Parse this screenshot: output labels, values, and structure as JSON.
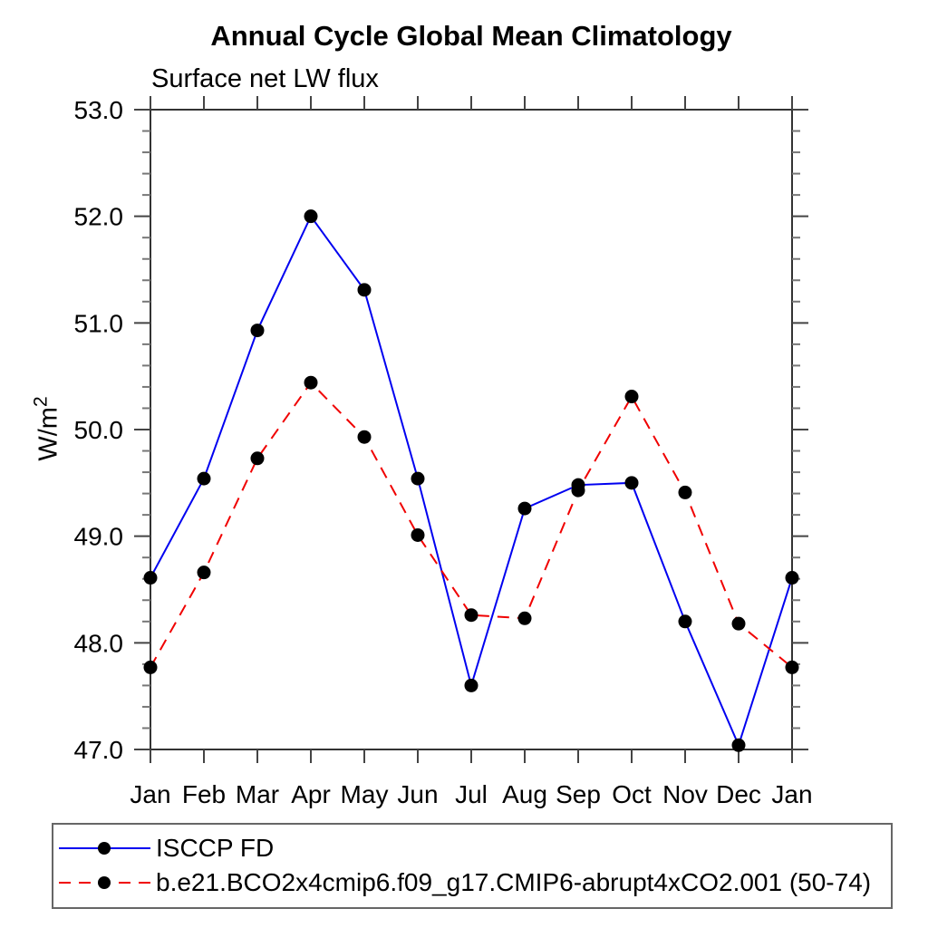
{
  "chart_data": {
    "type": "line",
    "title": "Annual Cycle Global Mean Climatology",
    "subtitle": "Surface net LW flux",
    "xlabel": "",
    "ylabel": "W/m^2",
    "ylabel_base": "W/m",
    "ylabel_exponent": "2",
    "categories": [
      "Jan",
      "Feb",
      "Mar",
      "Apr",
      "May",
      "Jun",
      "Jul",
      "Aug",
      "Sep",
      "Oct",
      "Nov",
      "Dec",
      "Jan"
    ],
    "ylim": [
      47.0,
      53.0
    ],
    "yticks": [
      53.0,
      52.0,
      51.0,
      50.0,
      49.0,
      48.0,
      47.0
    ],
    "ytick_labels": [
      "53.0",
      "52.0",
      "51.0",
      "50.0",
      "49.0",
      "48.0",
      "47.0"
    ],
    "yminor_step": 0.2,
    "grid": false,
    "legend_position": "bottom-left",
    "series": [
      {
        "name": "ISCCP FD",
        "color": "#0000f0",
        "line_style": "solid",
        "marker": "filled-circle",
        "marker_color": "#000000",
        "values": [
          48.61,
          49.54,
          50.93,
          52.0,
          51.31,
          49.54,
          47.6,
          49.26,
          49.48,
          49.5,
          48.2,
          47.04,
          48.61
        ]
      },
      {
        "name": "b.e21.BCO2x4cmip6.f09_g17.CMIP6-abrupt4xCO2.001 (50-74)",
        "color": "#f00000",
        "line_style": "dashed",
        "marker": "filled-circle",
        "marker_color": "#000000",
        "values": [
          47.77,
          48.66,
          49.73,
          50.44,
          49.93,
          49.01,
          48.26,
          48.23,
          49.43,
          50.31,
          49.41,
          48.18,
          47.77
        ]
      }
    ]
  },
  "colors": {
    "axis_frame": "#333333",
    "tick_major": "#444444",
    "tick_minor": "#777777",
    "text": "#000000",
    "background": "#ffffff"
  }
}
